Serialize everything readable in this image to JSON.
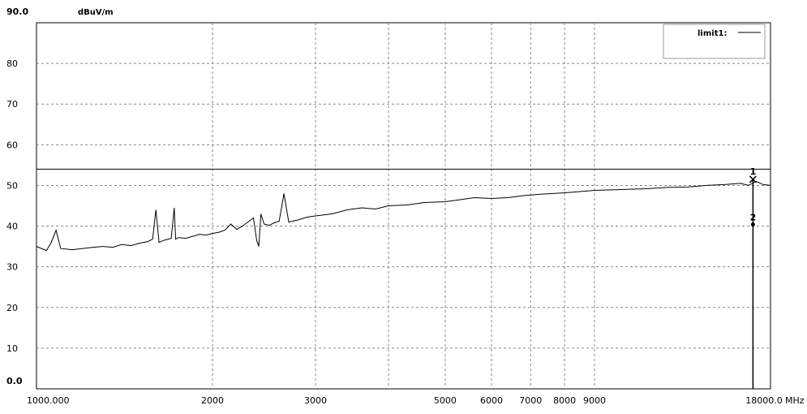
{
  "chart_data": {
    "type": "line",
    "title": "",
    "ylabel": "dBuV/m",
    "xlabel": "MHz",
    "ylim": [
      0.0,
      90.0
    ],
    "xlim": [
      1000,
      18000
    ],
    "x_scale": "log",
    "grid": true,
    "ytick_labels": [
      "0.0",
      "10",
      "20",
      "30",
      "40",
      "50",
      "60",
      "70",
      "80",
      "90.0"
    ],
    "ytick_values": [
      0,
      10,
      20,
      30,
      40,
      50,
      60,
      70,
      80,
      90
    ],
    "xtick_labels": [
      "1000.000",
      "2000",
      "3000",
      "5000",
      "6000",
      "7000",
      "8000",
      "9000",
      "18000.0"
    ],
    "xtick_values": [
      1000,
      2000,
      3000,
      5000,
      6000,
      7000,
      8000,
      9000,
      18000
    ],
    "x_grid_values": [
      2000,
      3000,
      4000,
      5000,
      6000,
      7000,
      8000,
      9000
    ],
    "legend": {
      "label": "limit1:",
      "placement": "top-right"
    },
    "limit_line": {
      "name": "limit1",
      "value": 54
    },
    "series": [
      {
        "x": [
          1000,
          1020,
          1040,
          1060,
          1080,
          1100,
          1150,
          1200,
          1250,
          1300,
          1350,
          1400,
          1450,
          1500,
          1550,
          1580,
          1600,
          1620,
          1650,
          1700,
          1720,
          1730,
          1750,
          1800,
          1850,
          1900,
          1950,
          2000,
          2050,
          2100,
          2150,
          2200,
          2250,
          2300,
          2350,
          2380,
          2400,
          2420,
          2450,
          2500,
          2550,
          2600,
          2650,
          2700,
          2800,
          2900,
          3000,
          3200,
          3400,
          3600,
          3800,
          4000,
          4300,
          4600,
          5000,
          5300,
          5600,
          6000,
          6400,
          6800,
          7200,
          7600,
          8000,
          8500,
          9000,
          10000,
          11000,
          12000,
          13000,
          14000,
          15000,
          16000,
          16500,
          17000,
          17500,
          18000
        ],
        "y": [
          35.0,
          34.5,
          34.0,
          36.0,
          39.0,
          34.5,
          34.2,
          34.5,
          34.8,
          35.0,
          34.8,
          35.5,
          35.2,
          35.8,
          36.2,
          36.8,
          44.0,
          36.0,
          36.5,
          37.0,
          44.5,
          36.8,
          37.2,
          37.0,
          37.5,
          38.0,
          37.8,
          38.2,
          38.5,
          39.0,
          40.5,
          39.2,
          40.0,
          41.0,
          42.0,
          36.5,
          35.0,
          43.0,
          40.5,
          40.2,
          40.8,
          41.2,
          48.0,
          41.0,
          41.5,
          42.2,
          42.5,
          43.0,
          44.0,
          44.5,
          44.2,
          45.0,
          45.2,
          45.8,
          46.0,
          46.5,
          47.0,
          46.8,
          47.0,
          47.5,
          47.8,
          48.0,
          48.2,
          48.5,
          48.8,
          49.0,
          49.2,
          49.5,
          49.6,
          50.0,
          50.2,
          50.5,
          50.0,
          51.0,
          50.2,
          50.0
        ]
      }
    ],
    "markers": [
      {
        "label": "1",
        "x": 16800,
        "y": 51.5,
        "symbol": "x"
      },
      {
        "label": "2",
        "x": 16800,
        "y": 40.0,
        "symbol": "dot"
      }
    ]
  }
}
